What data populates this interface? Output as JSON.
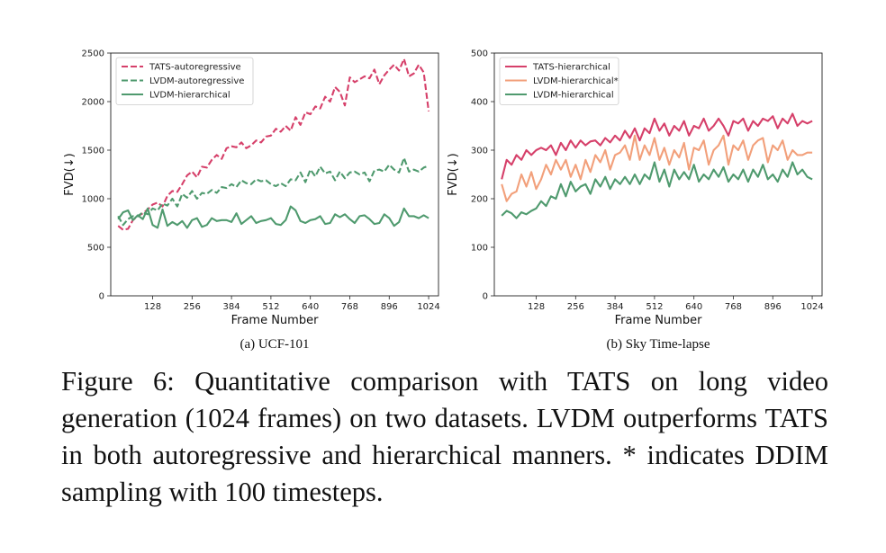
{
  "caption": "Figure 6: Quantitative comparison with TATS on long video generation (1024 frames) on two datasets. LVDM outperforms TATS in both autoregressive and hierarchical manners. * indicates DDIM sampling with 100 timesteps.",
  "chart_data": [
    {
      "type": "line",
      "subcaption": "(a) UCF-101",
      "xlabel": "Frame Number",
      "ylabel": "FVD(↓)",
      "xlim": [
        -8,
        1056
      ],
      "ylim": [
        0,
        2500
      ],
      "xticks": [
        128,
        256,
        384,
        512,
        640,
        768,
        896,
        1024
      ],
      "yticks": [
        0,
        500,
        1000,
        1500,
        2000,
        2500
      ],
      "grid": false,
      "legend_position": "top-left",
      "series": [
        {
          "name": "TATS-autoregressive",
          "color": "#d6406a",
          "dash": true,
          "x": [
            16,
            32,
            48,
            64,
            80,
            96,
            112,
            128,
            144,
            160,
            176,
            192,
            208,
            224,
            240,
            256,
            272,
            288,
            304,
            320,
            336,
            352,
            368,
            384,
            400,
            416,
            432,
            448,
            464,
            480,
            496,
            512,
            528,
            544,
            560,
            576,
            592,
            608,
            624,
            640,
            656,
            672,
            688,
            704,
            720,
            736,
            752,
            768,
            784,
            800,
            816,
            832,
            848,
            864,
            880,
            896,
            912,
            928,
            944,
            960,
            976,
            992,
            1008,
            1024
          ],
          "y": [
            720,
            680,
            690,
            780,
            820,
            850,
            890,
            940,
            960,
            920,
            1030,
            1080,
            1070,
            1150,
            1240,
            1280,
            1220,
            1330,
            1320,
            1400,
            1450,
            1410,
            1520,
            1540,
            1530,
            1580,
            1520,
            1550,
            1600,
            1580,
            1640,
            1650,
            1720,
            1690,
            1750,
            1700,
            1840,
            1760,
            1890,
            1870,
            1950,
            1930,
            2050,
            2000,
            2150,
            2100,
            1960,
            2250,
            2200,
            2230,
            2260,
            2240,
            2330,
            2180,
            2270,
            2330,
            2380,
            2320,
            2440,
            2260,
            2290,
            2380,
            2300,
            1900
          ]
        },
        {
          "name": "LVDM-autoregressive",
          "color": "#4f9a6e",
          "dash": true,
          "x": [
            16,
            32,
            48,
            64,
            80,
            96,
            112,
            128,
            144,
            160,
            176,
            192,
            208,
            224,
            240,
            256,
            272,
            288,
            304,
            320,
            336,
            352,
            368,
            384,
            400,
            416,
            432,
            448,
            464,
            480,
            496,
            512,
            528,
            544,
            560,
            576,
            592,
            608,
            624,
            640,
            656,
            672,
            688,
            704,
            720,
            736,
            752,
            768,
            784,
            800,
            816,
            832,
            848,
            864,
            880,
            896,
            912,
            928,
            944,
            960,
            976,
            992,
            1008,
            1024
          ],
          "y": [
            820,
            730,
            790,
            820,
            820,
            860,
            840,
            900,
            880,
            950,
            930,
            1000,
            920,
            1050,
            1010,
            1080,
            1000,
            1060,
            1050,
            1090,
            1060,
            1120,
            1110,
            1150,
            1120,
            1190,
            1160,
            1150,
            1200,
            1180,
            1190,
            1150,
            1130,
            1160,
            1130,
            1200,
            1190,
            1270,
            1170,
            1300,
            1230,
            1330,
            1260,
            1280,
            1190,
            1280,
            1210,
            1270,
            1280,
            1250,
            1270,
            1180,
            1290,
            1300,
            1280,
            1350,
            1300,
            1270,
            1420,
            1280,
            1300,
            1280,
            1320,
            1340
          ]
        },
        {
          "name": "LVDM-hierarchical",
          "color": "#4f9a6e",
          "dash": false,
          "x": [
            16,
            32,
            48,
            64,
            80,
            96,
            112,
            128,
            144,
            160,
            176,
            192,
            208,
            224,
            240,
            256,
            272,
            288,
            304,
            320,
            336,
            352,
            368,
            384,
            400,
            416,
            432,
            448,
            464,
            480,
            496,
            512,
            528,
            544,
            560,
            576,
            592,
            608,
            624,
            640,
            656,
            672,
            688,
            704,
            720,
            736,
            752,
            768,
            784,
            800,
            816,
            832,
            848,
            864,
            880,
            896,
            912,
            928,
            944,
            960,
            976,
            992,
            1008,
            1024
          ],
          "y": [
            790,
            860,
            880,
            780,
            830,
            790,
            900,
            730,
            700,
            890,
            720,
            760,
            730,
            770,
            700,
            780,
            800,
            710,
            730,
            800,
            770,
            780,
            780,
            760,
            850,
            740,
            780,
            820,
            750,
            770,
            780,
            800,
            740,
            730,
            780,
            920,
            880,
            770,
            750,
            780,
            790,
            820,
            740,
            750,
            840,
            810,
            840,
            790,
            750,
            820,
            830,
            790,
            740,
            750,
            840,
            800,
            720,
            760,
            900,
            820,
            820,
            800,
            830,
            800
          ]
        }
      ]
    },
    {
      "type": "line",
      "subcaption": "(b) Sky Time-lapse",
      "xlabel": "Frame Number",
      "ylabel": "FVD(↓)",
      "xlim": [
        -8,
        1056
      ],
      "ylim": [
        0,
        500
      ],
      "xticks": [
        128,
        256,
        384,
        512,
        640,
        768,
        896,
        1024
      ],
      "yticks": [
        0,
        100,
        200,
        300,
        400,
        500
      ],
      "grid": false,
      "legend_position": "top-left",
      "series": [
        {
          "name": "TATS-hierarchical",
          "color": "#d6406a",
          "dash": false,
          "x": [
            16,
            32,
            48,
            64,
            80,
            96,
            112,
            128,
            144,
            160,
            176,
            192,
            208,
            224,
            240,
            256,
            272,
            288,
            304,
            320,
            336,
            352,
            368,
            384,
            400,
            416,
            432,
            448,
            464,
            480,
            496,
            512,
            528,
            544,
            560,
            576,
            592,
            608,
            624,
            640,
            656,
            672,
            688,
            704,
            720,
            736,
            752,
            768,
            784,
            800,
            816,
            832,
            848,
            864,
            880,
            896,
            912,
            928,
            944,
            960,
            976,
            992,
            1008,
            1024
          ],
          "y": [
            240,
            280,
            270,
            290,
            280,
            300,
            290,
            300,
            305,
            300,
            310,
            290,
            315,
            300,
            320,
            305,
            320,
            310,
            318,
            320,
            310,
            325,
            316,
            330,
            320,
            340,
            325,
            345,
            320,
            345,
            335,
            365,
            340,
            355,
            330,
            350,
            340,
            360,
            330,
            350,
            345,
            365,
            340,
            350,
            365,
            350,
            330,
            360,
            355,
            365,
            340,
            360,
            350,
            365,
            360,
            370,
            345,
            365,
            355,
            375,
            350,
            360,
            355,
            360
          ]
        },
        {
          "name": "LVDM-hierarchical*",
          "color": "#f2a07b",
          "dash": false,
          "x": [
            16,
            32,
            48,
            64,
            80,
            96,
            112,
            128,
            144,
            160,
            176,
            192,
            208,
            224,
            240,
            256,
            272,
            288,
            304,
            320,
            336,
            352,
            368,
            384,
            400,
            416,
            432,
            448,
            464,
            480,
            496,
            512,
            528,
            544,
            560,
            576,
            592,
            608,
            624,
            640,
            656,
            672,
            688,
            704,
            720,
            736,
            752,
            768,
            784,
            800,
            816,
            832,
            848,
            864,
            880,
            896,
            912,
            928,
            944,
            960,
            976,
            992,
            1008,
            1024
          ],
          "y": [
            230,
            195,
            210,
            215,
            250,
            225,
            255,
            220,
            240,
            270,
            250,
            280,
            260,
            280,
            245,
            270,
            240,
            280,
            255,
            290,
            275,
            300,
            260,
            290,
            295,
            310,
            280,
            330,
            280,
            310,
            290,
            325,
            280,
            305,
            270,
            300,
            285,
            315,
            260,
            305,
            300,
            320,
            270,
            300,
            310,
            330,
            270,
            310,
            300,
            320,
            280,
            310,
            320,
            325,
            275,
            310,
            300,
            320,
            280,
            300,
            290,
            290,
            295,
            295
          ]
        },
        {
          "name": "LVDM-hierarchical",
          "color": "#4f9a6e",
          "dash": false,
          "x": [
            16,
            32,
            48,
            64,
            80,
            96,
            112,
            128,
            144,
            160,
            176,
            192,
            208,
            224,
            240,
            256,
            272,
            288,
            304,
            320,
            336,
            352,
            368,
            384,
            400,
            416,
            432,
            448,
            464,
            480,
            496,
            512,
            528,
            544,
            560,
            576,
            592,
            608,
            624,
            640,
            656,
            672,
            688,
            704,
            720,
            736,
            752,
            768,
            784,
            800,
            816,
            832,
            848,
            864,
            880,
            896,
            912,
            928,
            944,
            960,
            976,
            992,
            1008,
            1024
          ],
          "y": [
            165,
            175,
            170,
            160,
            172,
            168,
            175,
            180,
            195,
            185,
            205,
            200,
            230,
            205,
            235,
            215,
            225,
            230,
            210,
            240,
            225,
            245,
            220,
            240,
            230,
            245,
            230,
            250,
            230,
            250,
            240,
            275,
            235,
            260,
            225,
            260,
            240,
            255,
            240,
            270,
            235,
            250,
            240,
            260,
            245,
            265,
            235,
            250,
            240,
            260,
            235,
            260,
            245,
            270,
            240,
            250,
            235,
            260,
            245,
            275,
            250,
            260,
            245,
            240
          ]
        }
      ]
    }
  ]
}
